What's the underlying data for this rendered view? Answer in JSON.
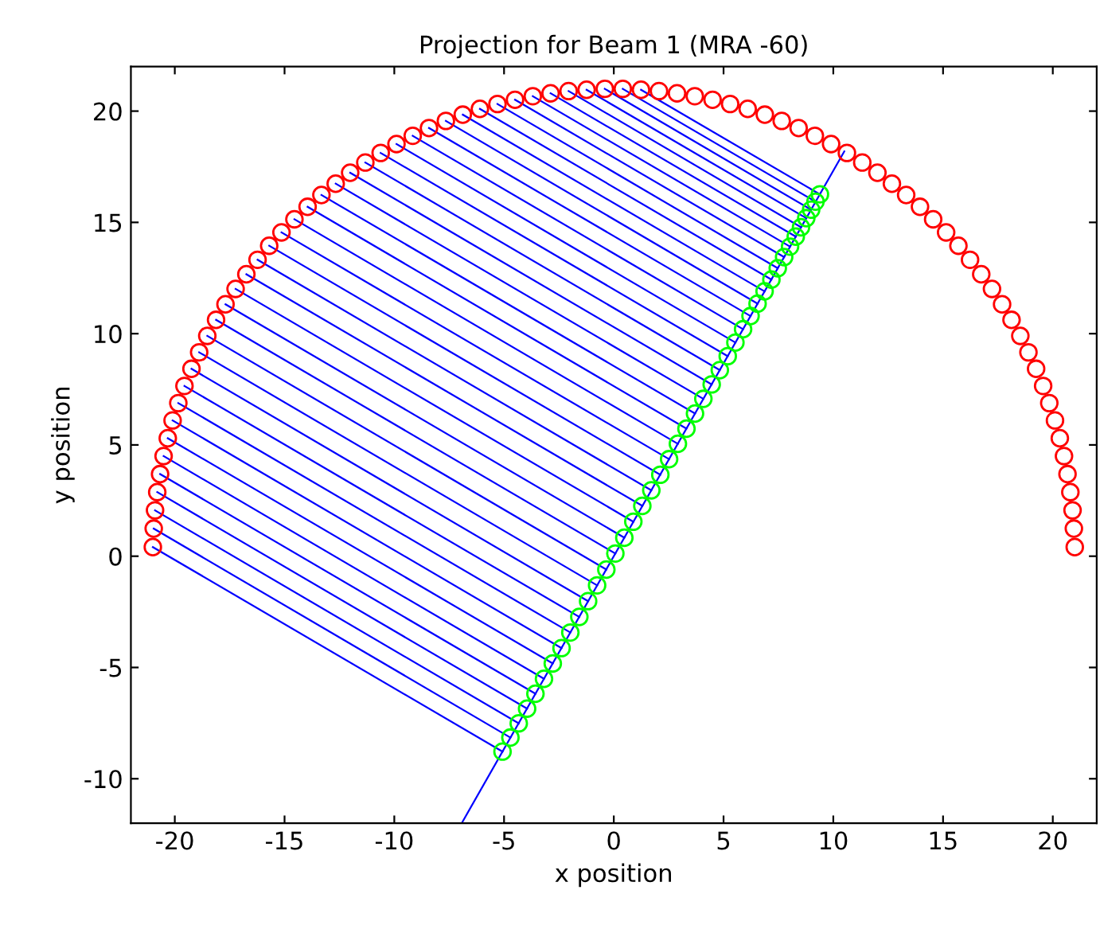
{
  "chart_data": {
    "type": "scatter",
    "title": "Projection for Beam 1 (MRA -60)",
    "xlabel": "x position",
    "ylabel": "y position",
    "xlim": [
      -22,
      22
    ],
    "ylim": [
      -12,
      22
    ],
    "xticks": [
      -20,
      -15,
      -10,
      -5,
      0,
      5,
      10,
      15,
      20
    ],
    "yticks": [
      -10,
      -5,
      0,
      5,
      10,
      15,
      20
    ],
    "grid": false,
    "legend": false,
    "series": [
      {
        "type": "line",
        "color": "#0000ff",
        "marker": "none",
        "line_style": "solid",
        "x": [
          -6.93,
          10.5
        ],
        "values": [
          -12,
          18.19
        ]
      },
      {
        "type": "line",
        "color": "#0000ff",
        "marker": "none",
        "line_style": "solid",
        "x": [
          1.24,
          9.39
        ],
        "values": [
          20.96,
          16.26
        ]
      },
      {
        "type": "line",
        "color": "#0000ff",
        "marker": "none",
        "line_style": "solid",
        "x": [
          0.41,
          9.19
        ],
        "values": [
          21.0,
          15.93
        ]
      },
      {
        "type": "line",
        "color": "#0000ff",
        "marker": "none",
        "line_style": "solid",
        "x": [
          -0.41,
          8.99
        ],
        "values": [
          21.0,
          15.57
        ]
      },
      {
        "type": "line",
        "color": "#0000ff",
        "marker": "none",
        "line_style": "solid",
        "x": [
          -1.24,
          8.77
        ],
        "values": [
          20.96,
          15.19
        ]
      },
      {
        "type": "line",
        "color": "#0000ff",
        "marker": "none",
        "line_style": "solid",
        "x": [
          -2.06,
          8.53
        ],
        "values": [
          20.9,
          14.78
        ]
      },
      {
        "type": "line",
        "color": "#0000ff",
        "marker": "none",
        "line_style": "solid",
        "x": [
          -2.88,
          8.29
        ],
        "values": [
          20.8,
          14.36
        ]
      },
      {
        "type": "line",
        "color": "#0000ff",
        "marker": "none",
        "line_style": "solid",
        "x": [
          -3.69,
          8.03
        ],
        "values": [
          20.67,
          13.91
        ]
      },
      {
        "type": "line",
        "color": "#0000ff",
        "marker": "none",
        "line_style": "solid",
        "x": [
          -4.5,
          7.76
        ],
        "values": [
          20.51,
          13.44
        ]
      },
      {
        "type": "line",
        "color": "#0000ff",
        "marker": "none",
        "line_style": "solid",
        "x": [
          -5.3,
          7.47
        ],
        "values": [
          20.32,
          12.94
        ]
      },
      {
        "type": "line",
        "color": "#0000ff",
        "marker": "none",
        "line_style": "solid",
        "x": [
          -6.1,
          7.18
        ],
        "values": [
          20.1,
          12.43
        ]
      },
      {
        "type": "line",
        "color": "#0000ff",
        "marker": "none",
        "line_style": "solid",
        "x": [
          -6.88,
          6.87
        ],
        "values": [
          19.84,
          11.9
        ]
      },
      {
        "type": "line",
        "color": "#0000ff",
        "marker": "none",
        "line_style": "solid",
        "x": [
          -7.65,
          6.55
        ],
        "values": [
          19.56,
          11.35
        ]
      },
      {
        "type": "line",
        "color": "#0000ff",
        "marker": "none",
        "line_style": "solid",
        "x": [
          -8.42,
          6.23
        ],
        "values": [
          19.24,
          10.79
        ]
      },
      {
        "type": "line",
        "color": "#0000ff",
        "marker": "none",
        "line_style": "solid",
        "x": [
          -9.16,
          5.89
        ],
        "values": [
          18.89,
          10.2
        ]
      },
      {
        "type": "line",
        "color": "#0000ff",
        "marker": "none",
        "line_style": "solid",
        "x": [
          -9.9,
          5.54
        ],
        "values": [
          18.52,
          9.6
        ]
      },
      {
        "type": "line",
        "color": "#0000ff",
        "marker": "none",
        "line_style": "solid",
        "x": [
          -10.62,
          5.19
        ],
        "values": [
          18.12,
          8.99
        ]
      },
      {
        "type": "line",
        "color": "#0000ff",
        "marker": "none",
        "line_style": "solid",
        "x": [
          -11.32,
          4.83
        ],
        "values": [
          17.69,
          8.36
        ]
      },
      {
        "type": "line",
        "color": "#0000ff",
        "marker": "none",
        "line_style": "solid",
        "x": [
          -12.01,
          4.46
        ],
        "values": [
          17.23,
          7.72
        ]
      },
      {
        "type": "line",
        "color": "#0000ff",
        "marker": "none",
        "line_style": "solid",
        "x": [
          -12.67,
          4.08
        ],
        "values": [
          16.74,
          7.07
        ]
      },
      {
        "type": "line",
        "color": "#0000ff",
        "marker": "none",
        "line_style": "solid",
        "x": [
          -13.32,
          3.7
        ],
        "values": [
          16.23,
          6.41
        ]
      },
      {
        "type": "line",
        "color": "#0000ff",
        "marker": "none",
        "line_style": "solid",
        "x": [
          -13.95,
          3.31
        ],
        "values": [
          15.7,
          5.73
        ]
      },
      {
        "type": "line",
        "color": "#0000ff",
        "marker": "none",
        "line_style": "solid",
        "x": [
          -14.55,
          2.92
        ],
        "values": [
          15.14,
          5.05
        ]
      },
      {
        "type": "line",
        "color": "#0000ff",
        "marker": "none",
        "line_style": "solid",
        "x": [
          -15.14,
          2.52
        ],
        "values": [
          14.55,
          4.36
        ]
      },
      {
        "type": "line",
        "color": "#0000ff",
        "marker": "none",
        "line_style": "solid",
        "x": [
          -15.7,
          2.12
        ],
        "values": [
          13.95,
          3.66
        ]
      },
      {
        "type": "line",
        "color": "#0000ff",
        "marker": "none",
        "line_style": "solid",
        "x": [
          -16.23,
          1.71
        ],
        "values": [
          13.32,
          2.96
        ]
      },
      {
        "type": "line",
        "color": "#0000ff",
        "marker": "none",
        "line_style": "solid",
        "x": [
          -16.74,
          1.3
        ],
        "values": [
          12.67,
          2.26
        ]
      },
      {
        "type": "line",
        "color": "#0000ff",
        "marker": "none",
        "line_style": "solid",
        "x": [
          -17.23,
          0.89
        ],
        "values": [
          12.01,
          1.55
        ]
      },
      {
        "type": "line",
        "color": "#0000ff",
        "marker": "none",
        "line_style": "solid",
        "x": [
          -17.69,
          0.48
        ],
        "values": [
          11.32,
          0.83
        ]
      },
      {
        "type": "line",
        "color": "#0000ff",
        "marker": "none",
        "line_style": "solid",
        "x": [
          -18.12,
          0.07
        ],
        "values": [
          10.62,
          0.12
        ]
      },
      {
        "type": "line",
        "color": "#0000ff",
        "marker": "none",
        "line_style": "solid",
        "x": [
          -18.52,
          -0.34
        ],
        "values": [
          9.9,
          -0.6
        ]
      },
      {
        "type": "line",
        "color": "#0000ff",
        "marker": "none",
        "line_style": "solid",
        "x": [
          -18.89,
          -0.76
        ],
        "values": [
          9.16,
          -1.31
        ]
      },
      {
        "type": "line",
        "color": "#0000ff",
        "marker": "none",
        "line_style": "solid",
        "x": [
          -19.24,
          -1.17
        ],
        "values": [
          8.42,
          -2.02
        ]
      },
      {
        "type": "line",
        "color": "#0000ff",
        "marker": "none",
        "line_style": "solid",
        "x": [
          -19.56,
          -1.57
        ],
        "values": [
          7.65,
          -2.73
        ]
      },
      {
        "type": "line",
        "color": "#0000ff",
        "marker": "none",
        "line_style": "solid",
        "x": [
          -19.84,
          -1.98
        ],
        "values": [
          6.88,
          -3.43
        ]
      },
      {
        "type": "line",
        "color": "#0000ff",
        "marker": "none",
        "line_style": "solid",
        "x": [
          -20.1,
          -2.38
        ],
        "values": [
          6.1,
          -4.13
        ]
      },
      {
        "type": "line",
        "color": "#0000ff",
        "marker": "none",
        "line_style": "solid",
        "x": [
          -20.32,
          -2.78
        ],
        "values": [
          5.3,
          -4.82
        ]
      },
      {
        "type": "line",
        "color": "#0000ff",
        "marker": "none",
        "line_style": "solid",
        "x": [
          -20.51,
          -3.18
        ],
        "values": [
          4.5,
          -5.51
        ]
      },
      {
        "type": "line",
        "color": "#0000ff",
        "marker": "none",
        "line_style": "solid",
        "x": [
          -20.67,
          -3.57
        ],
        "values": [
          3.69,
          -6.18
        ]
      },
      {
        "type": "line",
        "color": "#0000ff",
        "marker": "none",
        "line_style": "solid",
        "x": [
          -20.8,
          -3.95
        ],
        "values": [
          2.88,
          -6.85
        ]
      },
      {
        "type": "line",
        "color": "#0000ff",
        "marker": "none",
        "line_style": "solid",
        "x": [
          -20.9,
          -4.33
        ],
        "values": [
          2.06,
          -7.51
        ]
      },
      {
        "type": "line",
        "color": "#0000ff",
        "marker": "none",
        "line_style": "solid",
        "x": [
          -20.96,
          -4.71
        ],
        "values": [
          1.24,
          -8.15
        ]
      },
      {
        "type": "line",
        "color": "#0000ff",
        "marker": "none",
        "line_style": "solid",
        "x": [
          -21.0,
          -5.07
        ],
        "values": [
          0.41,
          -8.78
        ]
      },
      {
        "color": "#ff0000",
        "marker": "circle",
        "x": [
          21.0,
          20.96,
          20.9,
          20.8,
          20.67,
          20.51,
          20.32,
          20.1,
          19.84,
          19.56,
          19.24,
          18.89,
          18.52,
          18.12,
          17.69,
          17.23,
          16.74,
          16.23,
          15.7,
          15.14,
          14.55,
          13.95,
          13.32,
          12.67,
          12.01,
          11.32,
          10.62,
          9.9,
          9.16,
          8.42,
          7.65,
          6.88,
          6.1,
          5.3,
          4.5,
          3.69,
          2.88,
          2.06,
          1.24,
          0.41,
          -0.41,
          -1.24,
          -2.06,
          -2.88,
          -3.69,
          -4.5,
          -5.3,
          -6.1,
          -6.88,
          -7.65,
          -8.42,
          -9.16,
          -9.9,
          -10.62,
          -11.32,
          -12.01,
          -12.67,
          -13.32,
          -13.95,
          -14.55,
          -15.14,
          -15.7,
          -16.23,
          -16.74,
          -17.23,
          -17.69,
          -18.12,
          -18.52,
          -18.89,
          -19.24,
          -19.56,
          -19.84,
          -20.1,
          -20.32,
          -20.51,
          -20.67,
          -20.8,
          -20.9,
          -20.96,
          -21.0
        ],
        "values": [
          0.41,
          1.24,
          2.06,
          2.88,
          3.69,
          4.5,
          5.3,
          6.1,
          6.88,
          7.65,
          8.42,
          9.16,
          9.9,
          10.62,
          11.32,
          12.01,
          12.67,
          13.32,
          13.95,
          14.55,
          15.14,
          15.7,
          16.23,
          16.74,
          17.23,
          17.69,
          18.12,
          18.52,
          18.89,
          19.24,
          19.56,
          19.84,
          20.1,
          20.32,
          20.51,
          20.67,
          20.8,
          20.9,
          20.96,
          21.0,
          21.0,
          20.96,
          20.9,
          20.8,
          20.67,
          20.51,
          20.32,
          20.1,
          19.84,
          19.56,
          19.24,
          18.89,
          18.52,
          18.12,
          17.69,
          17.23,
          16.74,
          16.23,
          15.7,
          15.14,
          14.55,
          13.95,
          13.32,
          12.67,
          12.01,
          11.32,
          10.62,
          9.9,
          9.16,
          8.42,
          7.65,
          6.88,
          6.1,
          5.3,
          4.5,
          3.69,
          2.88,
          2.06,
          1.24,
          0.41
        ]
      },
      {
        "color": "#00ff00",
        "marker": "circle",
        "x": [
          9.39,
          9.19,
          8.99,
          8.77,
          8.53,
          8.29,
          8.03,
          7.76,
          7.47,
          7.18,
          6.87,
          6.55,
          6.23,
          5.89,
          5.54,
          5.19,
          4.83,
          4.46,
          4.08,
          3.7,
          3.31,
          2.92,
          2.52,
          2.12,
          1.71,
          1.3,
          0.89,
          0.48,
          0.07,
          -0.34,
          -0.76,
          -1.17,
          -1.57,
          -1.98,
          -2.38,
          -2.78,
          -3.18,
          -3.57,
          -3.95,
          -4.33,
          -4.71,
          -5.07
        ],
        "values": [
          16.26,
          15.93,
          15.57,
          15.19,
          14.78,
          14.36,
          13.91,
          13.44,
          12.94,
          12.43,
          11.9,
          11.35,
          10.79,
          10.2,
          9.6,
          8.99,
          8.36,
          7.72,
          7.07,
          6.41,
          5.73,
          5.05,
          4.36,
          3.66,
          2.96,
          2.26,
          1.55,
          0.83,
          0.12,
          -0.6,
          -1.31,
          -2.02,
          -2.73,
          -3.43,
          -4.13,
          -4.82,
          -5.51,
          -6.18,
          -6.85,
          -7.51,
          -8.15,
          -8.78
        ]
      }
    ]
  }
}
